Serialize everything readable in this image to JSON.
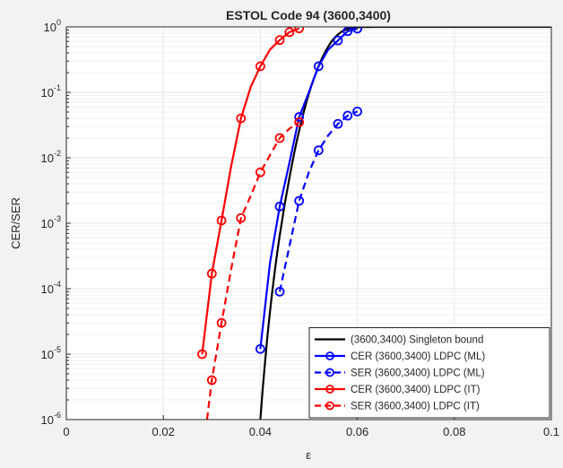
{
  "chart_data": {
    "type": "line",
    "title": "ESTOL Code 94 (3600,3400)",
    "xlabel": "ε",
    "ylabel": "CER/SER",
    "xlim": [
      0,
      0.1
    ],
    "ylim": [
      1e-06,
      1
    ],
    "yscale": "log",
    "grid": true,
    "legend_position": "bottom-right",
    "xticks": [
      {
        "value": 0,
        "label": "0"
      },
      {
        "value": 0.02,
        "label": "0.02"
      },
      {
        "value": 0.04,
        "label": "0.04"
      },
      {
        "value": 0.06,
        "label": "0.06"
      },
      {
        "value": 0.08,
        "label": "0.08"
      },
      {
        "value": 0.1,
        "label": "0.1"
      }
    ],
    "yticks": [
      {
        "value": 1e-06,
        "label": "10^-6",
        "mant": "10",
        "exp": "-6"
      },
      {
        "value": 1e-05,
        "label": "10^-5",
        "mant": "10",
        "exp": "-5"
      },
      {
        "value": 0.0001,
        "label": "10^-4",
        "mant": "10",
        "exp": "-4"
      },
      {
        "value": 0.001,
        "label": "10^-3",
        "mant": "10",
        "exp": "-3"
      },
      {
        "value": 0.01,
        "label": "10^-2",
        "mant": "10",
        "exp": "-2"
      },
      {
        "value": 0.1,
        "label": "10^-1",
        "mant": "10",
        "exp": "-1"
      },
      {
        "value": 1,
        "label": "10^0",
        "mant": "10",
        "exp": "0"
      }
    ],
    "series": [
      {
        "name": "(3600,3400) Singleton bound",
        "color": "#000000",
        "dashed": false,
        "markers": false,
        "x": [
          0.04,
          0.0405,
          0.041,
          0.0415,
          0.042,
          0.0425,
          0.043,
          0.0435,
          0.044,
          0.0445,
          0.045,
          0.0455,
          0.046,
          0.0465,
          0.047,
          0.0475,
          0.048,
          0.0485,
          0.049,
          0.0495,
          0.05,
          0.0505,
          0.051,
          0.0515,
          0.052,
          0.0525,
          0.053,
          0.0535,
          0.054,
          0.0545,
          0.055,
          0.0555,
          0.056,
          0.0565,
          0.057,
          0.0575,
          0.058,
          0.0585,
          0.059,
          0.0595,
          0.06,
          0.061,
          0.062,
          0.064,
          0.067,
          0.07,
          0.08,
          0.09,
          0.1
        ],
        "y": [
          1e-06,
          3e-06,
          8e-06,
          2e-05,
          4.5e-05,
          9.5e-05,
          0.00019,
          0.00036,
          0.00065,
          0.0011,
          0.0019,
          0.0031,
          0.005,
          0.0078,
          0.012,
          0.018,
          0.026,
          0.037,
          0.052,
          0.071,
          0.095,
          0.125,
          0.16,
          0.2,
          0.25,
          0.305,
          0.365,
          0.43,
          0.5,
          0.57,
          0.64,
          0.705,
          0.765,
          0.82,
          0.865,
          0.9,
          0.93,
          0.952,
          0.968,
          0.98,
          0.988,
          0.995,
          0.998,
          1.0,
          1.0,
          1.0,
          1.0,
          1.0,
          1.0
        ]
      },
      {
        "name": "CER (3600,3400) LDPC (ML)",
        "color": "#0000ff",
        "dashed": false,
        "markers": true,
        "x": [
          0.04,
          0.042,
          0.044,
          0.046,
          0.048,
          0.05,
          0.052,
          0.054,
          0.056,
          0.058,
          0.06
        ],
        "y": [
          1.2e-05,
          0.00025,
          0.0018,
          0.0085,
          0.042,
          0.1,
          0.25,
          0.45,
          0.62,
          0.86,
          0.94
        ],
        "marker_x": [
          0.04,
          0.044,
          0.048,
          0.052,
          0.056,
          0.058,
          0.06
        ],
        "marker_y": [
          1.2e-05,
          0.0018,
          0.042,
          0.25,
          0.62,
          0.86,
          0.94
        ]
      },
      {
        "name": "SER (3600,3400) LDPC (ML)",
        "color": "#0000ff",
        "dashed": true,
        "markers": true,
        "x": [
          0.044,
          0.046,
          0.048,
          0.05,
          0.052,
          0.054,
          0.056,
          0.058,
          0.06
        ],
        "y": [
          9e-05,
          0.00045,
          0.0022,
          0.006,
          0.013,
          0.022,
          0.033,
          0.044,
          0.051
        ],
        "marker_x": [
          0.044,
          0.048,
          0.052,
          0.056,
          0.058,
          0.06
        ],
        "marker_y": [
          9e-05,
          0.0022,
          0.013,
          0.033,
          0.044,
          0.051
        ]
      },
      {
        "name": "CER (3600,3400) LDPC (IT)",
        "color": "#ff0000",
        "dashed": false,
        "markers": true,
        "x": [
          0.028,
          0.03,
          0.032,
          0.034,
          0.036,
          0.038,
          0.04,
          0.042,
          0.044,
          0.046,
          0.048
        ],
        "y": [
          1e-05,
          0.00017,
          0.0011,
          0.0075,
          0.04,
          0.12,
          0.25,
          0.45,
          0.63,
          0.83,
          0.95
        ],
        "marker_x": [
          0.028,
          0.03,
          0.032,
          0.036,
          0.04,
          0.044,
          0.046,
          0.048
        ],
        "marker_y": [
          1e-05,
          0.00017,
          0.0011,
          0.04,
          0.25,
          0.63,
          0.83,
          0.95
        ]
      },
      {
        "name": "SER (3600,3400) LDPC (IT)",
        "color": "#ff0000",
        "dashed": true,
        "markers": true,
        "x": [
          0.029,
          0.03,
          0.032,
          0.034,
          0.036,
          0.038,
          0.04,
          0.042,
          0.044,
          0.046,
          0.048
        ],
        "y": [
          1e-06,
          4e-06,
          3e-05,
          0.0002,
          0.0012,
          0.0026,
          0.006,
          0.011,
          0.02,
          0.028,
          0.035
        ],
        "marker_x": [
          0.03,
          0.032,
          0.036,
          0.04,
          0.044,
          0.048
        ],
        "marker_y": [
          4e-06,
          3e-05,
          0.0012,
          0.006,
          0.02,
          0.035
        ]
      }
    ]
  }
}
